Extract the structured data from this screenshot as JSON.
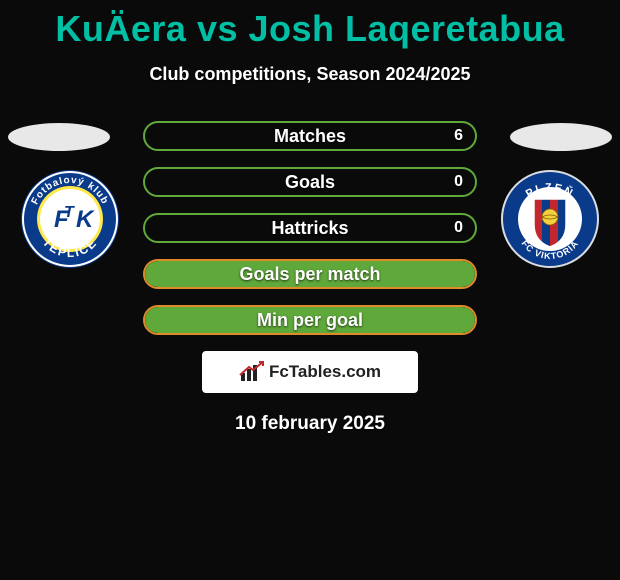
{
  "title_color": "#00bfa5",
  "avatar_color": "#e8e8e8",
  "title": "KuÄera vs Josh Laqeretabua",
  "subtitle": "Club competitions, Season 2024/2025",
  "green": "#5fa83a",
  "orange": "#e08a2a",
  "bars": [
    {
      "label": "Matches",
      "left_val": "",
      "right_val": "6",
      "fill_pct": 0,
      "border": "green",
      "fill": "orange"
    },
    {
      "label": "Goals",
      "left_val": "",
      "right_val": "0",
      "fill_pct": 0,
      "border": "green",
      "fill": "orange"
    },
    {
      "label": "Hattricks",
      "left_val": "",
      "right_val": "0",
      "fill_pct": 0,
      "border": "green",
      "fill": "orange"
    },
    {
      "label": "Goals per match",
      "left_val": "",
      "right_val": "",
      "fill_pct": 100,
      "border": "orange",
      "fill": "green"
    },
    {
      "label": "Min per goal",
      "left_val": "",
      "right_val": "",
      "fill_pct": 100,
      "border": "orange",
      "fill": "green"
    }
  ],
  "footer_brand": "FcTables.com",
  "date": "10 february 2025",
  "crest_left": {
    "outer": "#0a3a8a",
    "ring": "#ffffff",
    "ring2": "#ffe84a",
    "inner_bg": "#ffffff",
    "letter": "#0a3a8a",
    "text_top": "Fotbalový klub",
    "text_bottom": "TEPLICE",
    "monogram": "FTK"
  },
  "crest_right": {
    "outer": "#0a3a8a",
    "ring": "#dcdcdc",
    "inner_bg": "#ffffff",
    "text_top": "PLZEŇ",
    "text_bottom": "FC VIKTORIA",
    "stripes": [
      "#c1272d",
      "#0a3a8a"
    ]
  }
}
